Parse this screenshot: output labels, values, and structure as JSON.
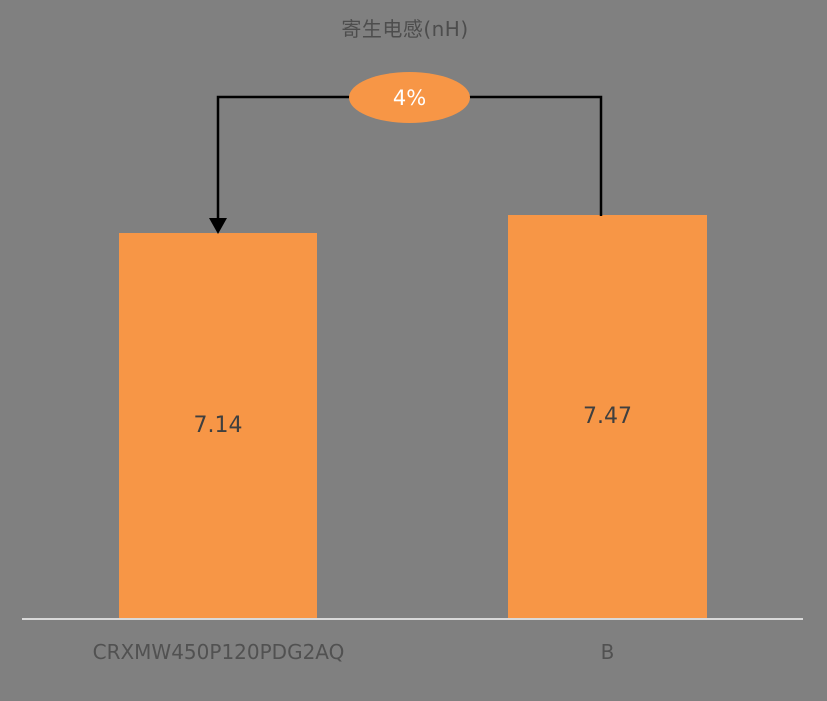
{
  "chart_data": {
    "type": "bar",
    "title": "寄生电感(nH)",
    "categories": [
      "CRXMW450P120PDG2AQ",
      "B"
    ],
    "values": [
      7.14,
      7.47
    ],
    "value_labels": [
      "7.14",
      "7.47"
    ],
    "value_label_position": "inside-center",
    "annotation": {
      "label": "4%",
      "shape": "ellipse",
      "connector": "bracket-with-down-arrow-to-first-bar"
    },
    "baseline": 0,
    "grid": false,
    "legend": "none",
    "axis": {
      "x_axis_line": true,
      "y_axis": "hidden"
    },
    "colors": {
      "background": "#808080",
      "bar": "#F79646",
      "annotation_fill": "#F79646",
      "annotation_text": "#FFFFFF",
      "connector": "#000000",
      "axis_line": "#D9D9D9",
      "title_text": "#4D4D4D",
      "category_text": "#515151",
      "value_text": "#3F3F3F"
    }
  }
}
